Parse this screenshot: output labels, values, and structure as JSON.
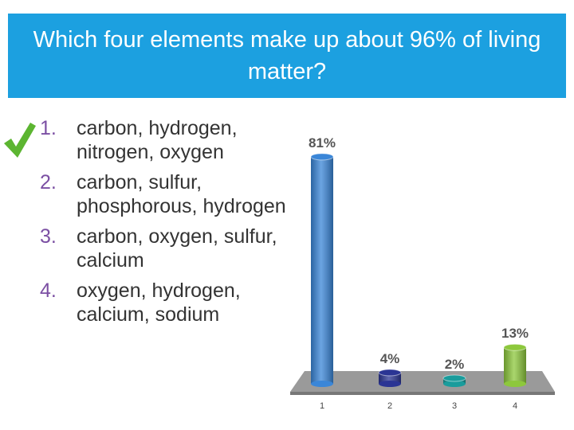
{
  "slide": {
    "title": "Which four elements make up about 96% of living matter?",
    "options": [
      {
        "number": "1.",
        "text": "carbon, hydrogen, nitrogen, oxygen"
      },
      {
        "number": "2.",
        "text": "carbon, sulfur, phosphorous, hydrogen"
      },
      {
        "number": "3.",
        "text": "carbon, oxygen, sulfur, calcium"
      },
      {
        "number": "4.",
        "text": "oxygen, hydrogen, calcium, sodium"
      }
    ]
  },
  "chart_data": {
    "type": "bar",
    "categories": [
      "1",
      "2",
      "3",
      "4"
    ],
    "values": [
      81,
      4,
      2,
      13
    ],
    "value_labels": [
      "81%",
      "4%",
      "2%",
      "13%"
    ],
    "colors": [
      "#3a86d8",
      "#2b3594",
      "#1a9c9c",
      "#8dc83c"
    ]
  }
}
